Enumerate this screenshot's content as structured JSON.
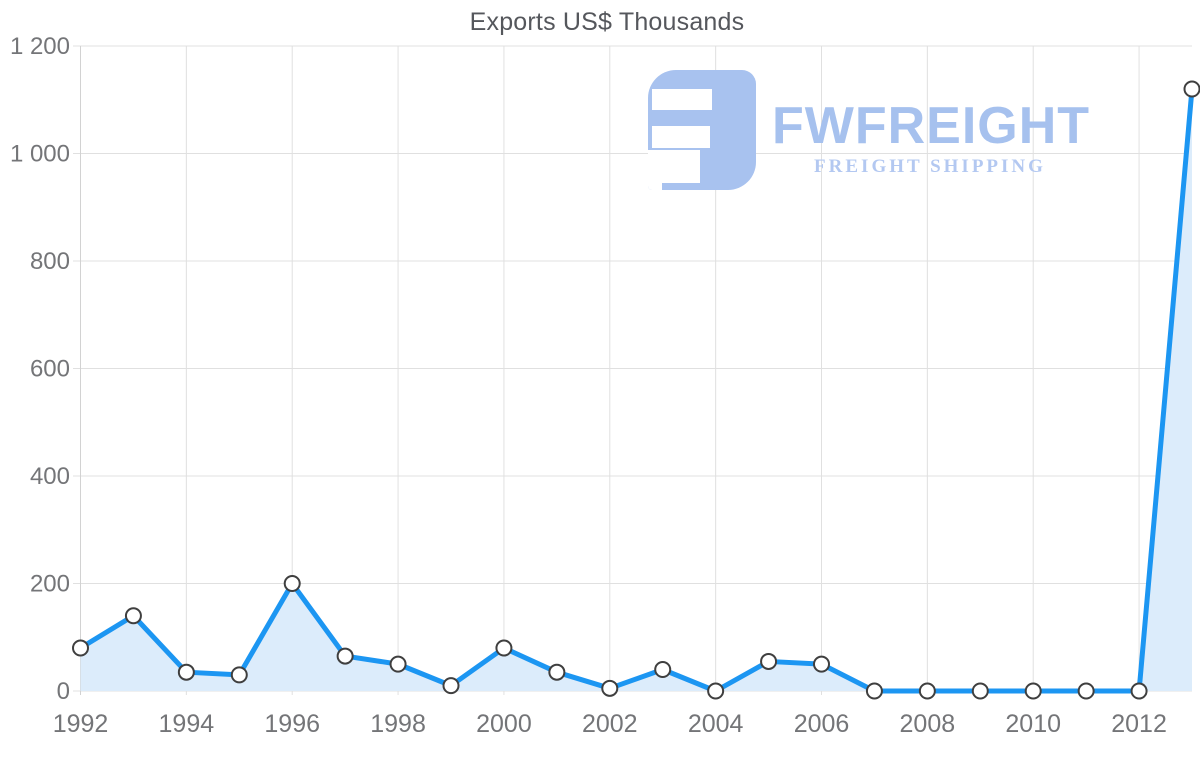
{
  "chart": {
    "title": "Exports US$ Thousands"
  },
  "watermark": {
    "brand": "FWFREIGHT",
    "tagline": "FREIGHT SHIPPING"
  },
  "chart_data": {
    "type": "area",
    "title": "Exports US$ Thousands",
    "xlabel": "",
    "ylabel": "",
    "x": [
      1992,
      1993,
      1994,
      1995,
      1996,
      1997,
      1998,
      1999,
      2000,
      2001,
      2002,
      2003,
      2004,
      2005,
      2006,
      2007,
      2008,
      2009,
      2010,
      2011,
      2012,
      2013
    ],
    "values": [
      80,
      140,
      35,
      30,
      200,
      65,
      50,
      10,
      80,
      35,
      5,
      40,
      0,
      55,
      50,
      0,
      0,
      0,
      0,
      0,
      0,
      1120
    ],
    "ylim": [
      0,
      1200
    ],
    "grid": true,
    "legend": "none",
    "yticks": [
      {
        "value": 0,
        "label": "0"
      },
      {
        "value": 200,
        "label": "200"
      },
      {
        "value": 400,
        "label": "400"
      },
      {
        "value": 600,
        "label": "600"
      },
      {
        "value": 800,
        "label": "800"
      },
      {
        "value": 1000,
        "label": "1 000"
      },
      {
        "value": 1200,
        "label": "1 200"
      }
    ],
    "xticks": [
      {
        "value": 1992,
        "label": "1992"
      },
      {
        "value": 1994,
        "label": "1994"
      },
      {
        "value": 1996,
        "label": "1996"
      },
      {
        "value": 1998,
        "label": "1998"
      },
      {
        "value": 2000,
        "label": "2000"
      },
      {
        "value": 2002,
        "label": "2002"
      },
      {
        "value": 2004,
        "label": "2004"
      },
      {
        "value": 2006,
        "label": "2006"
      },
      {
        "value": 2008,
        "label": "2008"
      },
      {
        "value": 2010,
        "label": "2010"
      },
      {
        "value": 2012,
        "label": "2012"
      }
    ],
    "colors": {
      "line": "#1c96f2",
      "fill": "#dcecfb",
      "marker_fill": "#ffffff",
      "marker_stroke": "#3f3f3f",
      "grid": "#e0e0e0",
      "axis_line": "#d2d2d2",
      "tick_text": "#747578",
      "title_text": "#55575c",
      "logo": "#a8c2ef"
    }
  }
}
